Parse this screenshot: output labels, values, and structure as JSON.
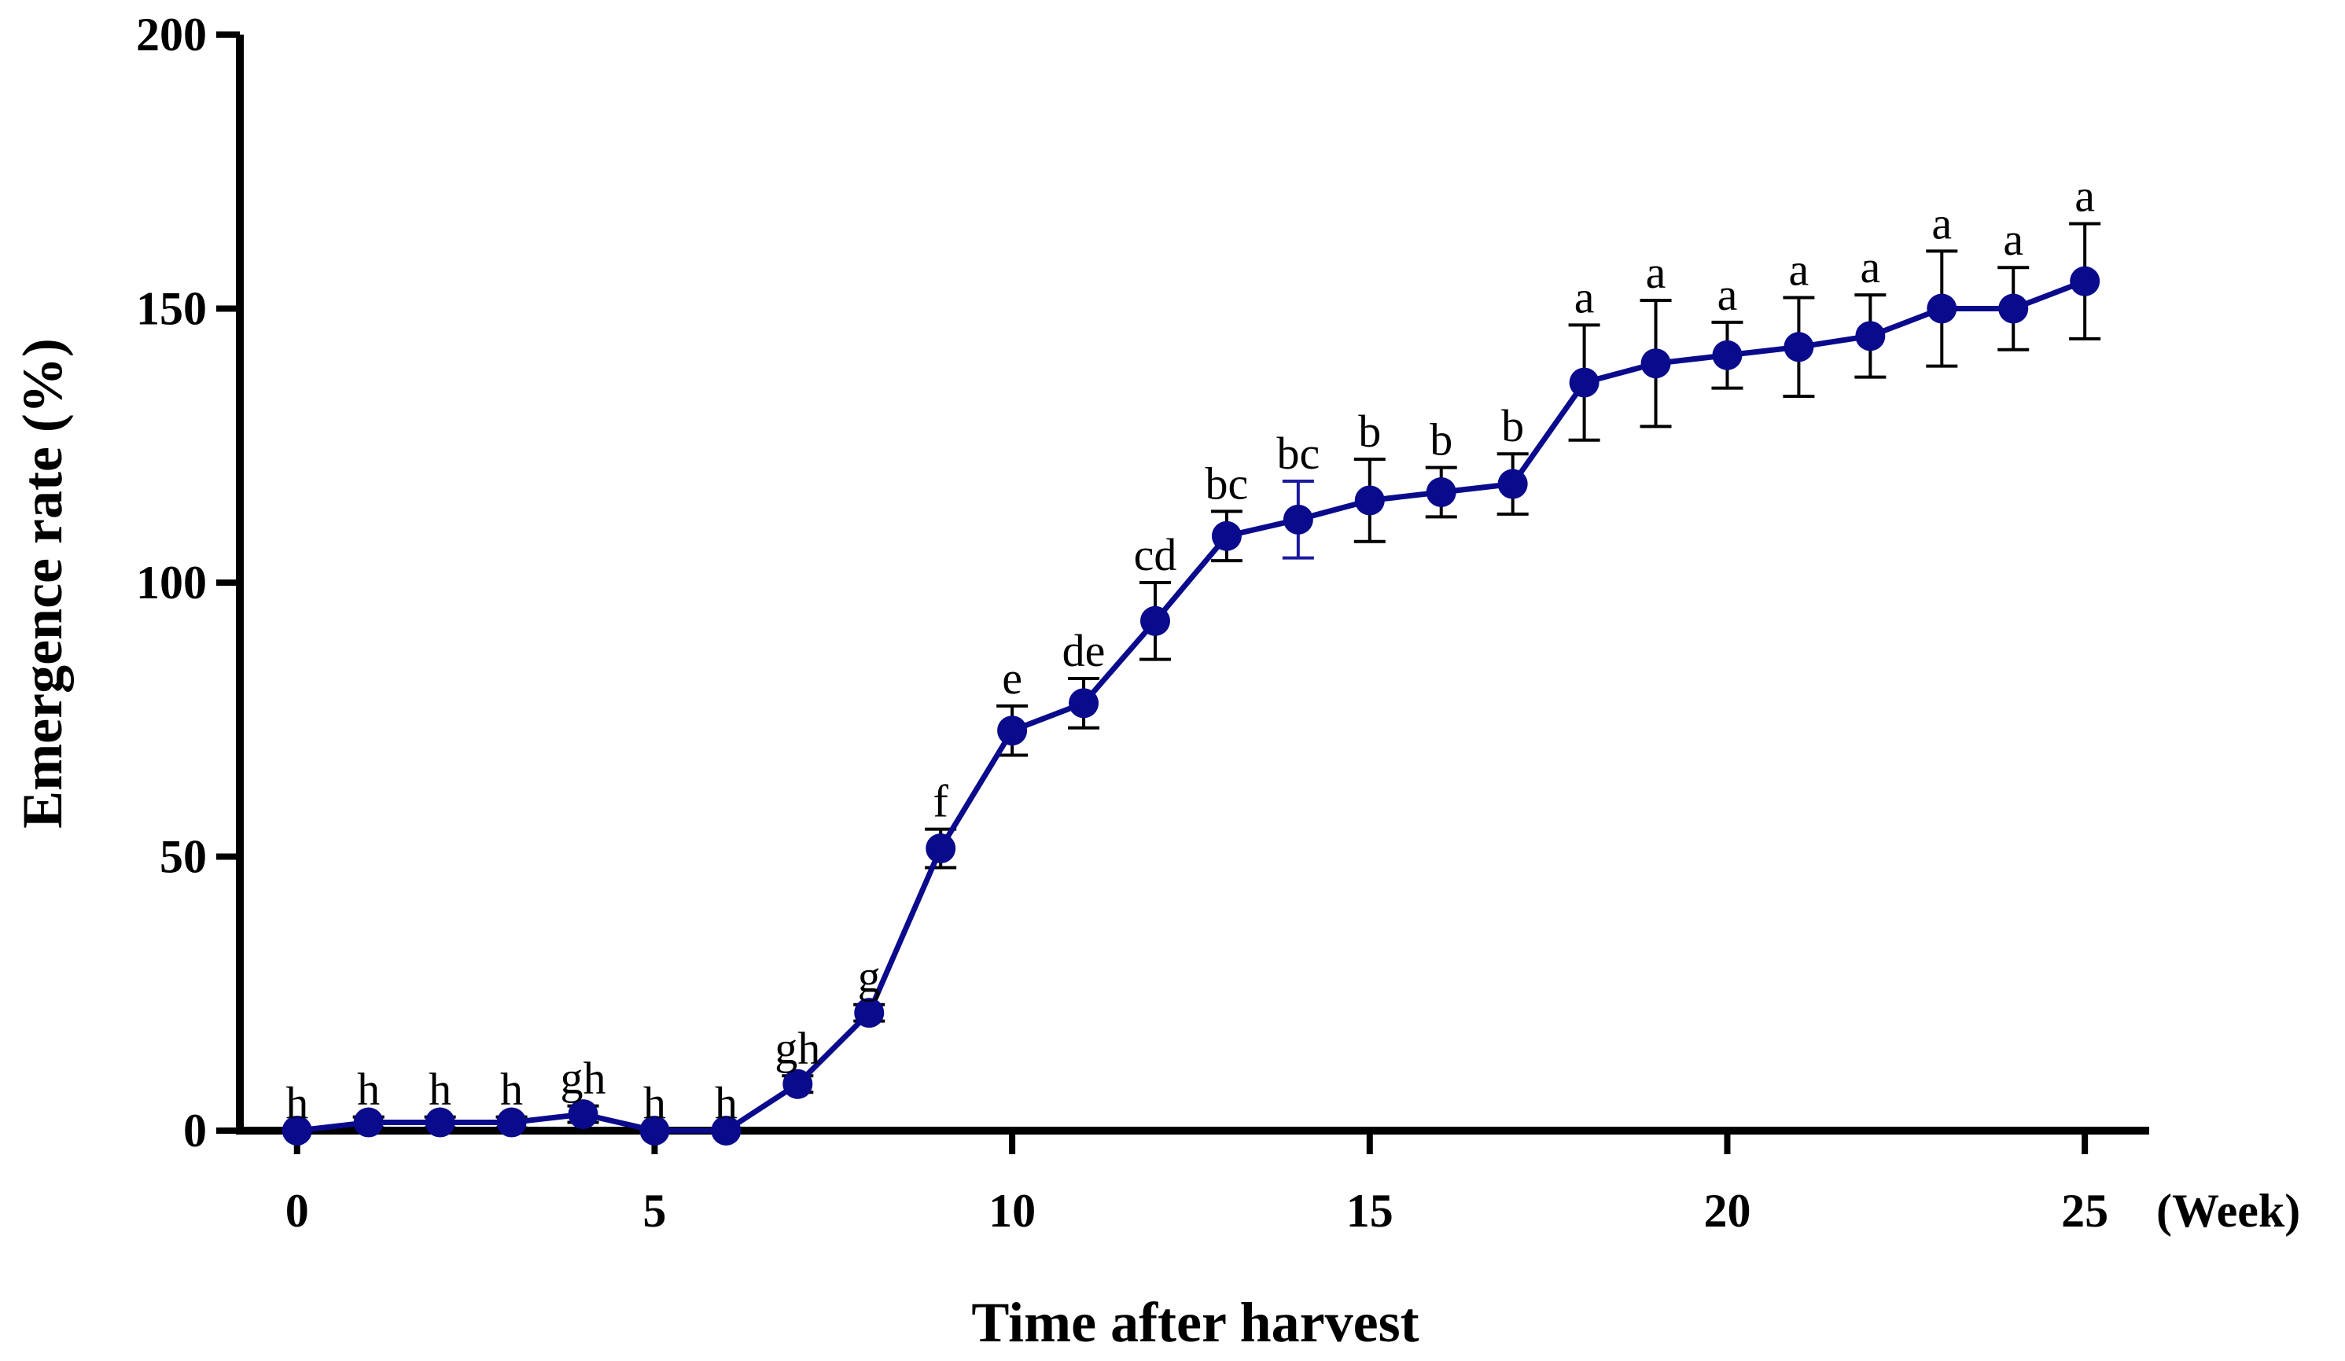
{
  "chart_data": {
    "type": "line",
    "title": "",
    "xlabel": "Time after harvest",
    "ylabel": "Emergence rate (%)",
    "x_unit_label": "(Week)",
    "xlim": [
      -0.8,
      25.9
    ],
    "ylim": [
      0,
      200
    ],
    "xticks": [
      0,
      5,
      10,
      15,
      20,
      25
    ],
    "xtick_labels": [
      "0",
      "5",
      "10",
      "15",
      "20",
      "25"
    ],
    "yticks": [
      0,
      50,
      100,
      150,
      200
    ],
    "ytick_labels": [
      "0",
      "50",
      "100",
      "150",
      "200"
    ],
    "grid": false,
    "series_color": "#0a0a8c",
    "error_color": "#000000",
    "highlight_error_color": "#1a1aa0",
    "series": [
      {
        "name": "Emergence rate",
        "x": [
          0,
          1,
          2,
          3,
          4,
          5,
          6,
          7,
          8,
          9,
          10,
          11,
          12,
          13,
          14,
          15,
          16,
          17,
          18,
          19,
          20,
          21,
          22,
          23,
          24,
          25
        ],
        "y": [
          0,
          1.5,
          1.5,
          1.5,
          3,
          0,
          0,
          8.5,
          21.5,
          51.5,
          73,
          78,
          93,
          108.5,
          111.5,
          115,
          116.5,
          118,
          136.5,
          140,
          141.5,
          143,
          145,
          150,
          150,
          155
        ],
        "error": [
          0,
          1,
          1,
          1,
          1.5,
          0,
          0,
          1.5,
          1.5,
          3.5,
          4.5,
          4.5,
          7,
          4.5,
          7,
          7.5,
          4.5,
          5.5,
          10.5,
          11.5,
          6,
          9,
          7.5,
          10.5,
          7.5,
          10.5
        ],
        "labels": [
          "h",
          "h",
          "h",
          "h",
          "gh",
          "h",
          "h",
          "gh",
          "g",
          "f",
          "e",
          "de",
          "cd",
          "bc",
          "bc",
          "b",
          "b",
          "b",
          "a",
          "a",
          "a",
          "a",
          "a",
          "a",
          "a",
          "a"
        ]
      }
    ]
  }
}
